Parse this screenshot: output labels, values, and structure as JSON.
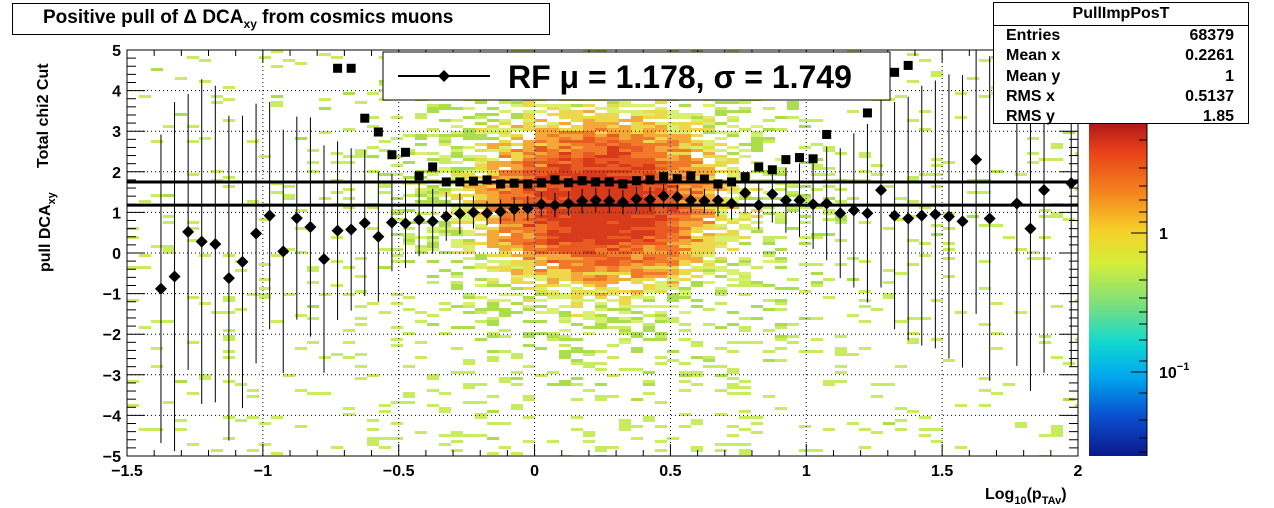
{
  "title": {
    "main": "Positive pull of Δ DCA",
    "sub": "xy",
    "tail": " from cosmics muons"
  },
  "stats": {
    "name": "PullImpPosT",
    "rows": [
      {
        "label": "Entries",
        "value": "68379"
      },
      {
        "label": "Mean x",
        "value": "0.2261"
      },
      {
        "label": "Mean y",
        "value": "1"
      },
      {
        "label": "RMS x",
        "value": "0.5137"
      },
      {
        "label": "RMS y",
        "value": "1.85"
      }
    ]
  },
  "legend": {
    "text": "RF μ =  1.178, σ =   1.749"
  },
  "axes": {
    "ylabel_top": "Total chi2 Cut",
    "ylabel_main": "pull DCA",
    "ylabel_sub": "xy",
    "xlabel_main": "Log",
    "xlabel_sub1": "10",
    "xlabel_mid": "(p",
    "xlabel_sub2": "TAv",
    "xlabel_end": ")"
  },
  "colors": {
    "marker": "#000000",
    "line": "#000000"
  },
  "chart_data": {
    "type": "scatter",
    "xlim": [
      -1.5,
      2
    ],
    "ylim": [
      -5,
      5
    ],
    "xticks": [
      "−1.5",
      "−1",
      "−0.5",
      "0",
      "0.5",
      "1",
      "1.5",
      "2"
    ],
    "yticks": [
      "5",
      "4",
      "3",
      "2",
      "1",
      "0",
      "−1",
      "−2",
      "−3",
      "−4",
      "−5"
    ],
    "colorbar_ticks": [
      "1",
      "10⁻¹"
    ],
    "grid": true,
    "hlines": [
      1.178,
      1.749
    ],
    "series": [
      {
        "name": "RF",
        "marker": "diamond",
        "points": [
          [
            -1.375,
            -0.88,
            3.8
          ],
          [
            -1.325,
            -0.58,
            4.3
          ],
          [
            -1.275,
            0.52,
            3.4
          ],
          [
            -1.225,
            0.28,
            4.0
          ],
          [
            -1.175,
            0.22,
            3.9
          ],
          [
            -1.125,
            -0.62,
            4.0
          ],
          [
            -1.075,
            -0.22,
            3.6
          ],
          [
            -1.025,
            0.48,
            3.2
          ],
          [
            -0.975,
            0.92,
            2.8
          ],
          [
            -0.925,
            0.04,
            3.0
          ],
          [
            -0.875,
            0.86,
            2.5
          ],
          [
            -0.825,
            0.64,
            2.7
          ],
          [
            -0.775,
            -0.15,
            2.8
          ],
          [
            -0.725,
            0.55,
            2.2
          ],
          [
            -0.675,
            0.58,
            2.0
          ],
          [
            -0.625,
            0.74,
            1.8
          ],
          [
            -0.575,
            0.4,
            1.6
          ],
          [
            -0.525,
            0.75,
            1.2
          ],
          [
            -0.475,
            0.73,
            1.1
          ],
          [
            -0.425,
            0.82,
            0.9
          ],
          [
            -0.375,
            0.78,
            0.8
          ],
          [
            -0.325,
            0.9,
            0.6
          ],
          [
            -0.275,
            0.97,
            0.5
          ],
          [
            -0.225,
            1.0,
            0.4
          ],
          [
            -0.175,
            0.98,
            0.3
          ],
          [
            -0.125,
            1.02,
            0.3
          ],
          [
            -0.075,
            1.08,
            0.3
          ],
          [
            -0.025,
            1.1,
            0.3
          ],
          [
            0.025,
            1.2,
            0.3
          ],
          [
            0.075,
            1.18,
            0.3
          ],
          [
            0.125,
            1.22,
            0.3
          ],
          [
            0.175,
            1.28,
            0.3
          ],
          [
            0.225,
            1.3,
            0.3
          ],
          [
            0.275,
            1.28,
            0.3
          ],
          [
            0.325,
            1.25,
            0.3
          ],
          [
            0.375,
            1.33,
            0.3
          ],
          [
            0.425,
            1.32,
            0.3
          ],
          [
            0.475,
            1.4,
            0.3
          ],
          [
            0.525,
            1.38,
            0.3
          ],
          [
            0.575,
            1.3,
            0.3
          ],
          [
            0.625,
            1.28,
            0.3
          ],
          [
            0.675,
            1.3,
            0.4
          ],
          [
            0.725,
            1.22,
            0.4
          ],
          [
            0.775,
            1.48,
            0.5
          ],
          [
            0.825,
            1.18,
            0.6
          ],
          [
            0.875,
            1.45,
            0.7
          ],
          [
            0.925,
            1.3,
            0.8
          ],
          [
            0.975,
            1.3,
            0.9
          ],
          [
            1.025,
            1.2,
            1.1
          ],
          [
            1.075,
            1.22,
            1.4
          ],
          [
            1.125,
            0.98,
            1.6
          ],
          [
            1.175,
            1.05,
            1.9
          ],
          [
            1.225,
            0.98,
            2.2
          ],
          [
            1.275,
            1.55,
            2.4
          ],
          [
            1.325,
            0.92,
            2.8
          ],
          [
            1.375,
            0.85,
            3.0
          ],
          [
            1.425,
            0.92,
            3.2
          ],
          [
            1.475,
            0.95,
            3.3
          ],
          [
            1.525,
            0.9,
            3.5
          ],
          [
            1.575,
            0.78,
            3.6
          ],
          [
            1.625,
            2.3,
            3.8
          ],
          [
            1.675,
            0.85,
            4.0
          ],
          [
            1.775,
            1.22,
            4.0
          ],
          [
            1.825,
            0.6,
            4.0
          ],
          [
            1.875,
            1.55,
            4.5
          ],
          [
            1.975,
            1.72,
            4.5
          ]
        ]
      },
      {
        "name": "",
        "marker": "square",
        "points": [
          [
            -0.725,
            4.55
          ],
          [
            -0.675,
            4.55
          ],
          [
            -0.625,
            3.32
          ],
          [
            -0.575,
            2.98
          ],
          [
            -0.525,
            2.42
          ],
          [
            -0.475,
            2.48
          ],
          [
            -0.425,
            1.9
          ],
          [
            -0.375,
            2.12
          ],
          [
            -0.325,
            1.75
          ],
          [
            -0.275,
            1.75
          ],
          [
            -0.225,
            1.77
          ],
          [
            -0.175,
            1.8
          ],
          [
            -0.125,
            1.7
          ],
          [
            -0.075,
            1.72
          ],
          [
            -0.025,
            1.7
          ],
          [
            0.025,
            1.73
          ],
          [
            0.075,
            1.8
          ],
          [
            0.125,
            1.73
          ],
          [
            0.175,
            1.78
          ],
          [
            0.225,
            1.75
          ],
          [
            0.275,
            1.75
          ],
          [
            0.325,
            1.7
          ],
          [
            0.375,
            1.78
          ],
          [
            0.425,
            1.8
          ],
          [
            0.475,
            1.88
          ],
          [
            0.525,
            1.83
          ],
          [
            0.575,
            1.9
          ],
          [
            0.625,
            1.82
          ],
          [
            0.675,
            1.7
          ],
          [
            0.725,
            1.75
          ],
          [
            0.775,
            1.88
          ],
          [
            0.825,
            2.12
          ],
          [
            0.875,
            2.05
          ],
          [
            0.925,
            2.3
          ],
          [
            0.975,
            2.35
          ],
          [
            1.025,
            2.32
          ],
          [
            1.075,
            2.92
          ],
          [
            1.225,
            3.45
          ],
          [
            1.325,
            4.45
          ],
          [
            1.375,
            4.62
          ]
        ]
      }
    ]
  }
}
